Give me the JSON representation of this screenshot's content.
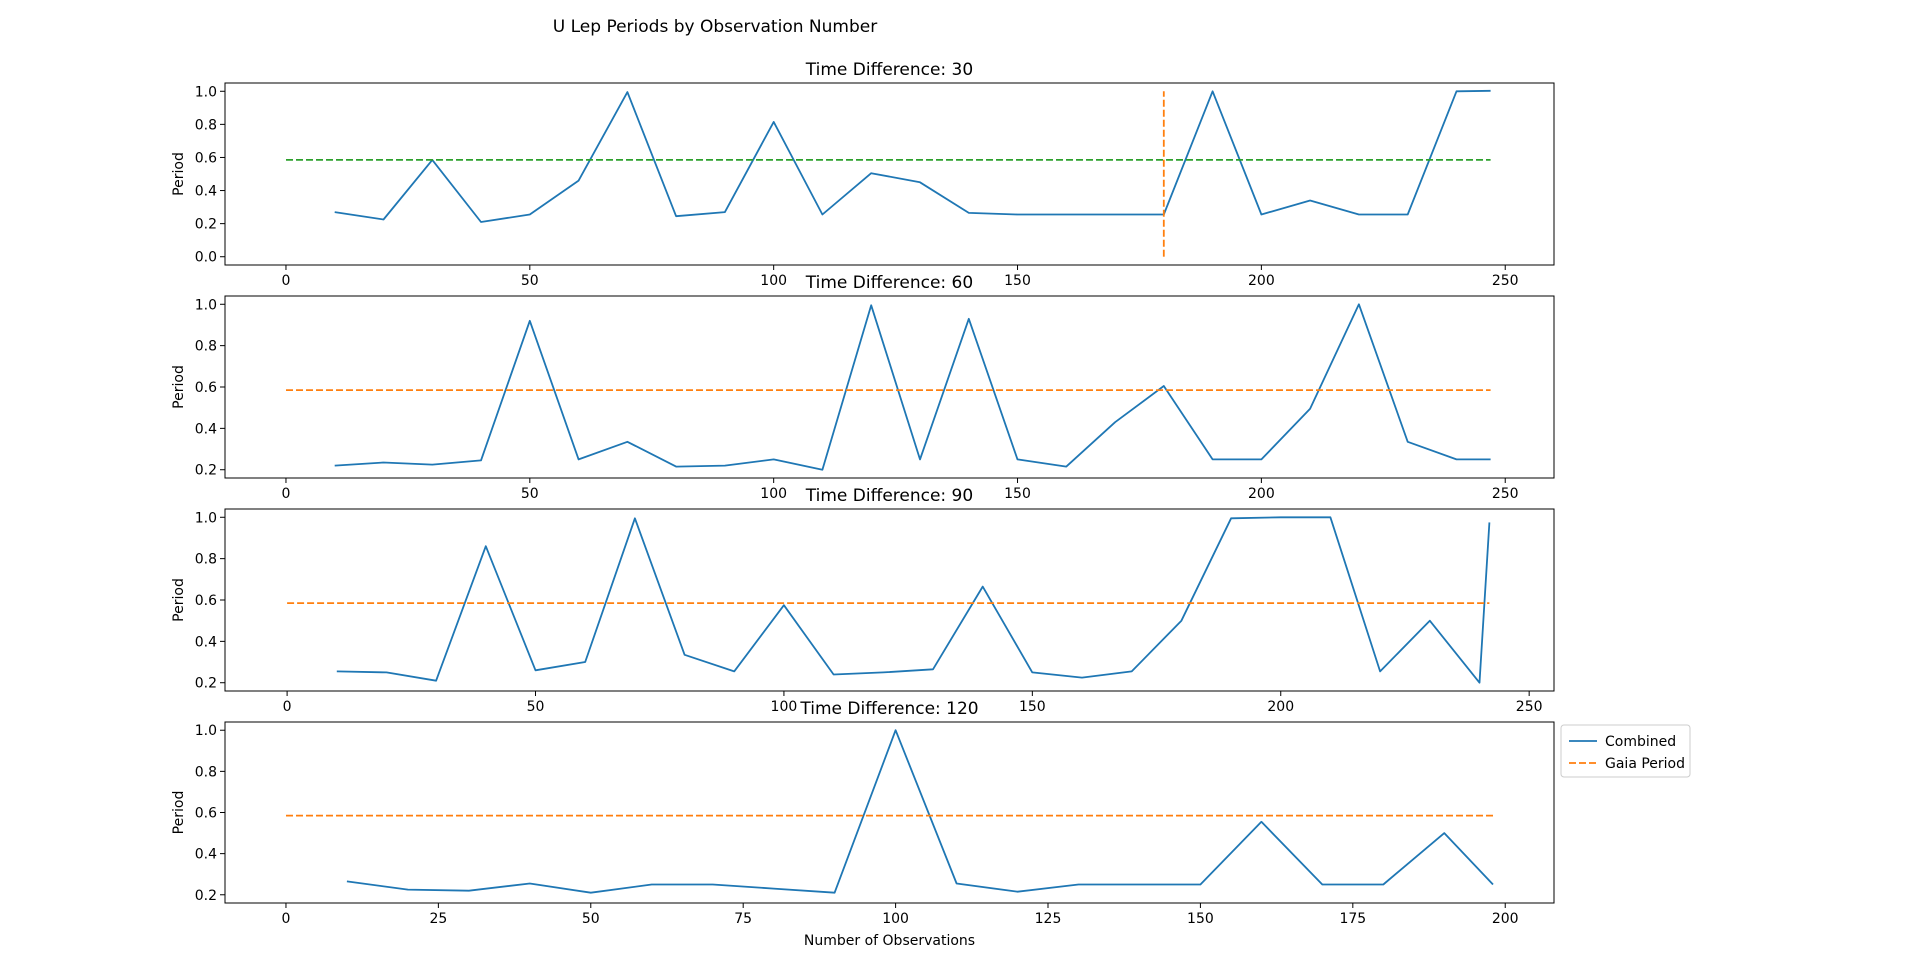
{
  "figure_title": "U Lep Periods by Observation Number",
  "colors": {
    "combined": "#1f77b4",
    "gaia": "#ff7f0e",
    "green_ref": "#2ca02c"
  },
  "legend": {
    "placement": "right of bottom panel, top-left anchored",
    "entries": [
      {
        "label": "Combined",
        "style": "solid",
        "color": "#1f77b4"
      },
      {
        "label": "Gaia Period",
        "style": "dashed",
        "color": "#ff7f0e"
      }
    ]
  },
  "chart_data": [
    {
      "type": "line",
      "title": "Time Difference: 30",
      "xlabel": "",
      "ylabel": "Period",
      "xlim": [
        -12.5,
        260
      ],
      "ylim": [
        -0.05,
        1.05
      ],
      "xticks": [
        0,
        50,
        100,
        150,
        200,
        250
      ],
      "yticks": [
        "0.0",
        "0.2",
        "0.4",
        "0.6",
        "0.8",
        "1.0"
      ],
      "grid": false,
      "series": [
        {
          "name": "Combined",
          "style": "solid",
          "color": "#1f77b4",
          "x": [
            10,
            20,
            30,
            40,
            50,
            60,
            70,
            80,
            90,
            100,
            110,
            120,
            130,
            140,
            150,
            160,
            170,
            180,
            190,
            200,
            210,
            220,
            230,
            240,
            247
          ],
          "y": [
            0.27,
            0.225,
            0.585,
            0.21,
            0.255,
            0.46,
            0.995,
            0.245,
            0.27,
            0.815,
            0.255,
            0.505,
            0.45,
            0.265,
            0.255,
            0.255,
            0.255,
            0.255,
            1.0,
            0.255,
            0.34,
            0.255,
            0.255,
            1.0,
            1.003
          ]
        },
        {
          "name": "Gaia Period",
          "style": "dashed",
          "color": "#2ca02c",
          "x": [
            0,
            247
          ],
          "y": [
            0.585,
            0.585
          ]
        },
        {
          "style": "dashed",
          "color": "#ff7f0e",
          "orientation": "vertical",
          "x": [
            180,
            180
          ],
          "y": [
            0.0,
            1.0
          ]
        }
      ]
    },
    {
      "type": "line",
      "title": "Time Difference: 60",
      "xlabel": "",
      "ylabel": "Period",
      "xlim": [
        -12.5,
        260
      ],
      "ylim": [
        0.16,
        1.04
      ],
      "xticks": [
        0,
        50,
        100,
        150,
        200,
        250
      ],
      "yticks": [
        "0.2",
        "0.4",
        "0.6",
        "0.8",
        "1.0"
      ],
      "grid": false,
      "series": [
        {
          "name": "Combined",
          "style": "solid",
          "color": "#1f77b4",
          "x": [
            10,
            20,
            30,
            40,
            50,
            60,
            70,
            80,
            90,
            100,
            110,
            120,
            130,
            140,
            150,
            160,
            170,
            180,
            190,
            200,
            210,
            220,
            230,
            240,
            247
          ],
          "y": [
            0.22,
            0.235,
            0.225,
            0.245,
            0.92,
            0.25,
            0.335,
            0.215,
            0.22,
            0.25,
            0.2,
            0.995,
            0.25,
            0.93,
            0.25,
            0.215,
            0.43,
            0.605,
            0.25,
            0.25,
            0.495,
            1.0,
            0.335,
            0.25,
            0.25
          ]
        },
        {
          "name": "Gaia Period",
          "style": "dashed",
          "color": "#ff7f0e",
          "x": [
            0,
            247
          ],
          "y": [
            0.585,
            0.585
          ]
        }
      ]
    },
    {
      "type": "line",
      "title": "Time Difference: 90",
      "xlabel": "",
      "ylabel": "Period",
      "xlim": [
        -12.5,
        255
      ],
      "ylim": [
        0.16,
        1.04
      ],
      "xticks": [
        0,
        50,
        100,
        150,
        200,
        250
      ],
      "yticks": [
        "0.2",
        "0.4",
        "0.6",
        "0.8",
        "1.0"
      ],
      "grid": false,
      "series": [
        {
          "name": "Combined",
          "style": "solid",
          "color": "#1f77b4",
          "x": [
            10,
            20,
            30,
            40,
            50,
            60,
            70,
            80,
            90,
            100,
            110,
            120,
            130,
            140,
            150,
            160,
            170,
            180,
            190,
            200,
            210,
            220,
            230,
            240,
            242
          ],
          "y": [
            0.255,
            0.25,
            0.21,
            0.86,
            0.26,
            0.3,
            0.995,
            0.335,
            0.255,
            0.575,
            0.24,
            0.25,
            0.265,
            0.665,
            0.25,
            0.225,
            0.255,
            0.5,
            0.995,
            1.0,
            1.0,
            0.255,
            0.5,
            0.2,
            0.975
          ]
        },
        {
          "name": "Gaia Period",
          "style": "dashed",
          "color": "#ff7f0e",
          "x": [
            0,
            242
          ],
          "y": [
            0.585,
            0.585
          ]
        }
      ]
    },
    {
      "type": "line",
      "title": "Time Difference: 120",
      "xlabel": "Number of Observations",
      "ylabel": "Period",
      "xlim": [
        -10,
        208
      ],
      "ylim": [
        0.16,
        1.04
      ],
      "xticks": [
        0,
        25,
        50,
        75,
        100,
        125,
        150,
        175,
        200
      ],
      "yticks": [
        "0.2",
        "0.4",
        "0.6",
        "0.8",
        "1.0"
      ],
      "grid": false,
      "series": [
        {
          "name": "Combined",
          "style": "solid",
          "color": "#1f77b4",
          "x": [
            10,
            20,
            30,
            40,
            50,
            60,
            70,
            80,
            90,
            100,
            110,
            120,
            130,
            140,
            150,
            160,
            170,
            180,
            190,
            198
          ],
          "y": [
            0.265,
            0.225,
            0.22,
            0.255,
            0.21,
            0.25,
            0.25,
            0.23,
            0.21,
            1.0,
            0.255,
            0.215,
            0.25,
            0.25,
            0.25,
            0.555,
            0.25,
            0.25,
            0.5,
            0.25
          ]
        },
        {
          "name": "Gaia Period",
          "style": "dashed",
          "color": "#ff7f0e",
          "x": [
            0,
            198
          ],
          "y": [
            0.585,
            0.585
          ]
        }
      ]
    }
  ]
}
